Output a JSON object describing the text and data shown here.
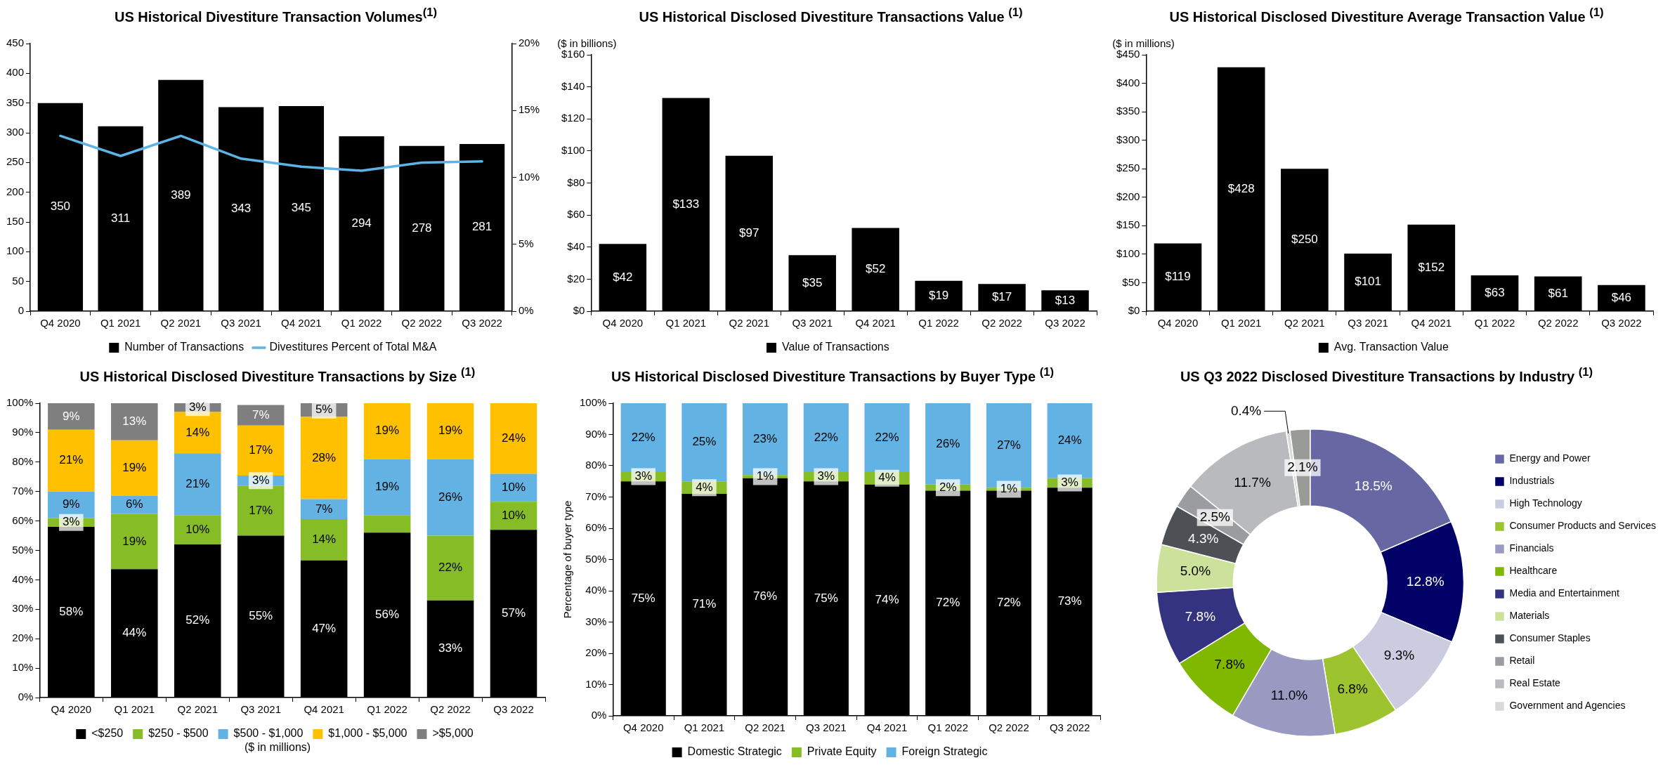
{
  "chart_data": [
    {
      "type": "bar",
      "title": "US Historical Divestiture Transaction Volumes$^{(1)}$",
      "categories": [
        "Q4 2020",
        "Q1 2021",
        "Q2 2021",
        "Q3 2021",
        "Q4 2021",
        "Q1 2022",
        "Q2 2022",
        "Q3 2022"
      ],
      "series": [
        {
          "name": "Number of Transactions",
          "type": "bar",
          "color": "#000000",
          "values": [
            350,
            311,
            389,
            343,
            345,
            294,
            278,
            281
          ],
          "value_labels": [
            "350",
            "311",
            "389",
            "343",
            "345",
            "294",
            "278",
            "281"
          ]
        },
        {
          "name": "Divestitures Percent of Total M&A",
          "type": "line",
          "axis": "y2",
          "color": "#5bb4e5",
          "values": [
            13.1,
            11.6,
            13.1,
            11.4,
            10.8,
            10.5,
            11.1,
            11.2
          ]
        }
      ],
      "ylim": [
        0,
        450
      ],
      "yticks": [
        0,
        50,
        100,
        150,
        200,
        250,
        300,
        350,
        400,
        450
      ],
      "y2lim": [
        0,
        20
      ],
      "y2ticks": [
        {
          "value": 0,
          "label": "0%"
        },
        {
          "value": 5,
          "label": "5%"
        },
        {
          "value": 10,
          "label": "10%"
        },
        {
          "value": 15,
          "label": "15%"
        },
        {
          "value": 20,
          "label": "20%"
        }
      ],
      "legend": "bottom"
    },
    {
      "type": "bar",
      "title": "US Historical Disclosed Divestiture Transactions Value $^{(1)}$",
      "ylabel": "($ in billions)",
      "categories": [
        "Q4 2020",
        "Q1 2021",
        "Q2 2021",
        "Q3 2021",
        "Q4 2021",
        "Q1 2022",
        "Q2 2022",
        "Q3 2022"
      ],
      "series": [
        {
          "name": "Value of Transactions",
          "color": "#000000",
          "values": [
            42,
            133,
            97,
            35,
            52,
            19,
            17,
            13
          ],
          "value_labels": [
            "$42",
            "$133",
            "$97",
            "$35",
            "$52",
            "$19",
            "$17",
            "$13"
          ]
        }
      ],
      "ylim": [
        0,
        160
      ],
      "yticks": [
        {
          "value": 0,
          "label": "$0"
        },
        {
          "value": 20,
          "label": "$20"
        },
        {
          "value": 40,
          "label": "$40"
        },
        {
          "value": 60,
          "label": "$60"
        },
        {
          "value": 80,
          "label": "$80"
        },
        {
          "value": 100,
          "label": "$100"
        },
        {
          "value": 120,
          "label": "$120"
        },
        {
          "value": 140,
          "label": "$140"
        },
        {
          "value": 160,
          "label": "$160"
        }
      ],
      "legend": "bottom"
    },
    {
      "type": "bar",
      "title": "US Historical Disclosed Divestiture Average Transaction Value $^{(1)}$",
      "ylabel": "($ in millions)",
      "categories": [
        "Q4 2020",
        "Q1 2021",
        "Q2 2021",
        "Q3 2021",
        "Q4 2021",
        "Q1 2022",
        "Q2 2022",
        "Q3 2022"
      ],
      "series": [
        {
          "name": "Avg. Transaction Value",
          "color": "#000000",
          "values": [
            119,
            428,
            250,
            101,
            152,
            63,
            61,
            46
          ],
          "value_labels": [
            "$119",
            "$428",
            "$250",
            "$101",
            "$152",
            "$63",
            "$61",
            "$46"
          ]
        }
      ],
      "ylim": [
        0,
        450
      ],
      "yticks": [
        {
          "value": 0,
          "label": "$0"
        },
        {
          "value": 50,
          "label": "$50"
        },
        {
          "value": 100,
          "label": "$100"
        },
        {
          "value": 150,
          "label": "$150"
        },
        {
          "value": 200,
          "label": "$200"
        },
        {
          "value": 250,
          "label": "$250"
        },
        {
          "value": 300,
          "label": "$300"
        },
        {
          "value": 350,
          "label": "$350"
        },
        {
          "value": 400,
          "label": "$400"
        },
        {
          "value": 450,
          "label": "$450"
        }
      ],
      "legend": "bottom"
    },
    {
      "type": "bar",
      "stacked": true,
      "title": "US Historical Disclosed Divestiture Transactions by Size $^{(1)}$",
      "categories": [
        "Q4 2020",
        "Q1 2021",
        "Q2 2021",
        "Q3 2021",
        "Q4 2021",
        "Q1 2022",
        "Q2 2022",
        "Q3 2022"
      ],
      "series": [
        {
          "name": "<$250",
          "color": "#000000",
          "values": [
            58,
            43.6,
            52,
            55,
            46.6,
            56,
            33,
            57
          ],
          "value_labels": [
            "58%",
            "44%",
            "52%",
            "55%",
            "47%",
            "56%",
            "33%",
            "57%"
          ]
        },
        {
          "name": "$250 - $500",
          "color": "#86bc25",
          "values": [
            3,
            18.8,
            10,
            17,
            14,
            6,
            22,
            9.5
          ],
          "value_labels": [
            "3%",
            "19%",
            "10%",
            "17%",
            "14%",
            null,
            "22%",
            "10%"
          ]
        },
        {
          "name": "$500 - $1,000",
          "color": "#62b3e4",
          "values": [
            9,
            6.2,
            21,
            3.4,
            6.8,
            19,
            26,
            9.5
          ],
          "value_labels": [
            "9%",
            "6%",
            "21%",
            "3%",
            "7%",
            "19%",
            "26%",
            "10%"
          ]
        },
        {
          "name": "$1,000 - $5,000",
          "color": "#ffc000",
          "values": [
            21,
            18.8,
            14,
            17,
            28,
            19,
            19,
            24
          ],
          "value_labels": [
            "21%",
            "19%",
            "14%",
            "17%",
            "28%",
            "19%",
            "19%",
            "24%"
          ]
        },
        {
          "name": ">$5,000",
          "color": "#7f7f7f",
          "values": [
            9,
            12.6,
            3,
            7,
            4.6,
            null,
            null,
            null
          ],
          "value_labels": [
            "9%",
            "13%",
            "3%",
            "7%",
            "5%",
            null,
            null,
            null
          ]
        }
      ],
      "ylim": [
        0,
        100
      ],
      "yticks": [
        {
          "value": 0,
          "label": "0%"
        },
        {
          "value": 10,
          "label": "10%"
        },
        {
          "value": 20,
          "label": "20%"
        },
        {
          "value": 30,
          "label": "30%"
        },
        {
          "value": 40,
          "label": "40%"
        },
        {
          "value": 50,
          "label": "50%"
        },
        {
          "value": 60,
          "label": "60%"
        },
        {
          "value": 70,
          "label": "70%"
        },
        {
          "value": 80,
          "label": "80%"
        },
        {
          "value": 90,
          "label": "90%"
        },
        {
          "value": 100,
          "label": "100%"
        }
      ],
      "legend": "bottom",
      "annotations": [
        "($ in millions)"
      ]
    },
    {
      "type": "bar",
      "stacked": true,
      "title": "US Historical Disclosed Divestiture Transactions by Buyer Type $^{(1)}$",
      "ylabel": "Percentage of buyer type",
      "categories": [
        "Q4 2020",
        "Q1 2021",
        "Q2 2021",
        "Q3 2021",
        "Q4 2021",
        "Q1 2022",
        "Q2 2022",
        "Q3 2022"
      ],
      "series": [
        {
          "name": "Domestic Strategic",
          "color": "#000000",
          "values": [
            75,
            71,
            76,
            75,
            74,
            72,
            72,
            73
          ],
          "value_labels": [
            "75%",
            "71%",
            "76%",
            "75%",
            "74%",
            "72%",
            "72%",
            "73%"
          ]
        },
        {
          "name": "Private Equity",
          "color": "#86bc25",
          "values": [
            3,
            4,
            1,
            3,
            4,
            2,
            1,
            3
          ],
          "value_labels": [
            "3%",
            "4%",
            "1%",
            "3%",
            "4%",
            "2%",
            "1%",
            "3%"
          ]
        },
        {
          "name": "Foreign Strategic",
          "color": "#62b3e4",
          "values": [
            22,
            25,
            23,
            22,
            22,
            26,
            27,
            24
          ],
          "value_labels": [
            "22%",
            "25%",
            "23%",
            "22%",
            "22%",
            "26%",
            "27%",
            "24%"
          ]
        }
      ],
      "ylim": [
        0,
        100
      ],
      "yticks": [
        {
          "value": 0,
          "label": "0%"
        },
        {
          "value": 10,
          "label": "10%"
        },
        {
          "value": 20,
          "label": "20%"
        },
        {
          "value": 30,
          "label": "30%"
        },
        {
          "value": 40,
          "label": "40%"
        },
        {
          "value": 50,
          "label": "50%"
        },
        {
          "value": 60,
          "label": "60%"
        },
        {
          "value": 70,
          "label": "70%"
        },
        {
          "value": 80,
          "label": "80%"
        },
        {
          "value": 90,
          "label": "90%"
        },
        {
          "value": 100,
          "label": "100%"
        }
      ],
      "legend": "bottom"
    },
    {
      "type": "donut",
      "title": "US Q3 2022 Disclosed Divestiture Transactions by Industry $^{(1)}$",
      "categories": [
        "Energy and Power",
        "Industrials",
        "High Technology",
        "Consumer Products and Services",
        "Financials",
        "Healthcare",
        "Media and Entertainment",
        "Materials",
        "Consumer Staples",
        "Retail",
        "Real Estate",
        "Government and Agencies",
        null
      ],
      "values": [
        18.5,
        12.8,
        9.3,
        6.8,
        11.0,
        7.8,
        7.8,
        5.0,
        4.3,
        2.5,
        11.7,
        0.4,
        2.1
      ],
      "colors": [
        "#6667a3",
        "#000066",
        "#cccce0",
        "#9dc32f",
        "#9999c2",
        "#80b800",
        "#333380",
        "#cce29a",
        "#4d5054",
        "#9a9c9f",
        "#b8babd",
        "#d9d9d9",
        "#999b96"
      ],
      "value_labels": [
        "18.5%",
        "12.8%",
        "9.3%",
        "6.8%",
        "11.0%",
        "7.8%",
        "7.8%",
        "5.0%",
        "4.3%",
        "2.5%",
        "11.7%",
        "0.4%",
        "2.1%"
      ],
      "legend": "right"
    }
  ]
}
